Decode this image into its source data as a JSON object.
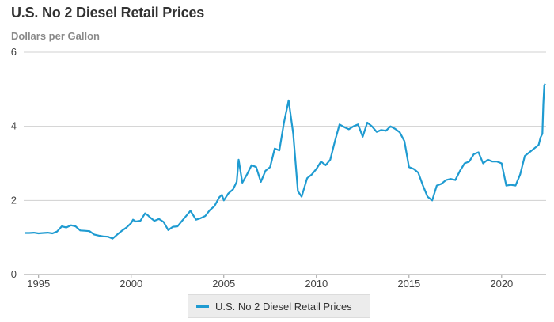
{
  "chart_data": {
    "type": "line",
    "title": "U.S. No 2 Diesel Retail Prices",
    "ylabel": "Dollars per Gallon",
    "xlim": [
      1994.2,
      2022.4
    ],
    "ylim": [
      0,
      6
    ],
    "yticks": [
      0,
      2,
      4,
      6
    ],
    "xticks": [
      1995,
      2000,
      2005,
      2010,
      2015,
      2020
    ],
    "grid": true,
    "legend_position": "bottom-center",
    "series": [
      {
        "name": "U.S. No 2 Diesel Retail Prices",
        "color": "#1f9bd1",
        "x": [
          1994.25,
          1994.5,
          1994.75,
          1995.0,
          1995.25,
          1995.5,
          1995.75,
          1996.0,
          1996.25,
          1996.5,
          1996.75,
          1997.0,
          1997.25,
          1997.5,
          1997.75,
          1998.0,
          1998.25,
          1998.5,
          1998.75,
          1999.0,
          1999.25,
          1999.5,
          1999.75,
          2000.0,
          2000.1,
          2000.25,
          2000.5,
          2000.75,
          2000.9,
          2001.0,
          2001.25,
          2001.5,
          2001.75,
          2002.0,
          2002.25,
          2002.5,
          2002.75,
          2003.0,
          2003.2,
          2003.5,
          2003.75,
          2004.0,
          2004.25,
          2004.5,
          2004.75,
          2004.9,
          2005.0,
          2005.25,
          2005.5,
          2005.7,
          2005.8,
          2006.0,
          2006.25,
          2006.5,
          2006.75,
          2007.0,
          2007.25,
          2007.5,
          2007.75,
          2008.0,
          2008.25,
          2008.5,
          2008.75,
          2009.0,
          2009.2,
          2009.5,
          2009.75,
          2010.0,
          2010.25,
          2010.5,
          2010.75,
          2011.0,
          2011.25,
          2011.5,
          2011.75,
          2012.0,
          2012.25,
          2012.5,
          2012.75,
          2013.0,
          2013.25,
          2013.5,
          2013.75,
          2014.0,
          2014.25,
          2014.5,
          2014.75,
          2015.0,
          2015.25,
          2015.5,
          2015.75,
          2016.0,
          2016.25,
          2016.5,
          2016.75,
          2017.0,
          2017.25,
          2017.5,
          2017.75,
          2018.0,
          2018.25,
          2018.5,
          2018.75,
          2019.0,
          2019.25,
          2019.5,
          2019.75,
          2020.0,
          2020.25,
          2020.5,
          2020.75,
          2021.0,
          2021.25,
          2021.5,
          2021.75,
          2022.0,
          2022.1,
          2022.2,
          2022.25,
          2022.3,
          2022.35
        ],
        "values": [
          1.12,
          1.12,
          1.13,
          1.11,
          1.12,
          1.13,
          1.11,
          1.16,
          1.3,
          1.27,
          1.33,
          1.3,
          1.19,
          1.18,
          1.17,
          1.08,
          1.05,
          1.03,
          1.02,
          0.97,
          1.08,
          1.18,
          1.27,
          1.39,
          1.48,
          1.43,
          1.45,
          1.65,
          1.6,
          1.55,
          1.45,
          1.5,
          1.42,
          1.2,
          1.29,
          1.3,
          1.45,
          1.6,
          1.72,
          1.48,
          1.52,
          1.58,
          1.74,
          1.85,
          2.08,
          2.15,
          2.0,
          2.19,
          2.3,
          2.5,
          3.1,
          2.48,
          2.7,
          2.95,
          2.9,
          2.5,
          2.8,
          2.9,
          3.4,
          3.35,
          4.1,
          4.7,
          3.8,
          2.25,
          2.1,
          2.6,
          2.7,
          2.85,
          3.05,
          2.95,
          3.1,
          3.6,
          4.05,
          3.98,
          3.92,
          4.0,
          4.05,
          3.72,
          4.1,
          4.0,
          3.85,
          3.9,
          3.88,
          4.0,
          3.93,
          3.84,
          3.6,
          2.9,
          2.85,
          2.75,
          2.4,
          2.1,
          2.0,
          2.4,
          2.45,
          2.55,
          2.58,
          2.55,
          2.8,
          3.0,
          3.05,
          3.25,
          3.3,
          3.0,
          3.1,
          3.05,
          3.05,
          3.0,
          2.4,
          2.42,
          2.4,
          2.7,
          3.2,
          3.3,
          3.4,
          3.5,
          3.7,
          3.8,
          4.6,
          5.1,
          5.15
        ]
      }
    ]
  }
}
